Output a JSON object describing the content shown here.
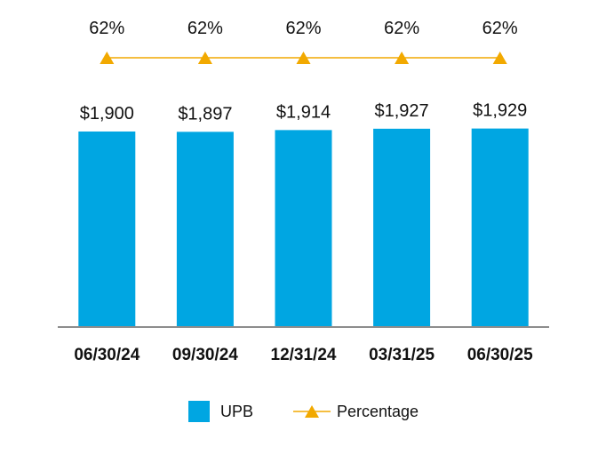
{
  "chart_data": {
    "type": "bar",
    "categories": [
      "06/30/24",
      "09/30/24",
      "12/31/24",
      "03/31/25",
      "06/30/25"
    ],
    "series": [
      {
        "name": "UPB",
        "type": "bar",
        "values": [
          1900,
          1897,
          1914,
          1927,
          1929
        ],
        "labels": [
          "$1,900",
          "$1,897",
          "$1,914",
          "$1,927",
          "$1,929"
        ],
        "color": "#00A6E2"
      },
      {
        "name": "Percentage",
        "type": "line",
        "values": [
          62,
          62,
          62,
          62,
          62
        ],
        "labels": [
          "62%",
          "62%",
          "62%",
          "62%",
          "62%"
        ],
        "color": "#F2A900",
        "marker": "triangle"
      }
    ],
    "ylim": [
      0,
      2000
    ],
    "grid": false,
    "legend": "bottom"
  }
}
